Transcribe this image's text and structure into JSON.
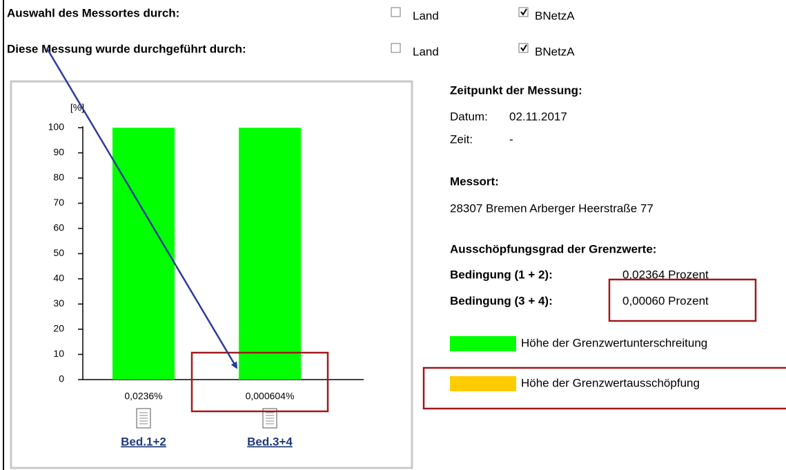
{
  "selection": {
    "label": "Auswahl des Messortes durch:",
    "options": [
      "Land",
      "BNetzA"
    ],
    "checked": [
      false,
      true
    ]
  },
  "performed_by": {
    "label": "Diese Messung wurde durchgeführt durch:",
    "options": [
      "Land",
      "BNetzA"
    ],
    "checked": [
      false,
      true
    ]
  },
  "chart_data": {
    "type": "bar",
    "stacked": true,
    "y_label": "[%]",
    "categories": [
      "Bed.1+2",
      "Bed.3+4"
    ],
    "series": [
      {
        "name": "Höhe der Grenzwertausschöpfung",
        "color": "#ffcc00",
        "values": [
          0.0236,
          0.000604
        ],
        "value_labels": [
          "0,0236%",
          "0,000604%"
        ]
      },
      {
        "name": "Höhe der Grenzwertunterschreitung",
        "color": "#00ff00",
        "values": [
          99.9764,
          99.999396
        ]
      }
    ],
    "ylim": [
      0,
      100
    ],
    "yticks": [
      0,
      10,
      20,
      30,
      40,
      50,
      60,
      70,
      80,
      90,
      100
    ]
  },
  "info": {
    "time_heading": "Zeitpunkt der Messung:",
    "date_label": "Datum:",
    "date_value": "02.11.2017",
    "time_label": "Zeit:",
    "time_value": "-",
    "location_heading": "Messort:",
    "location_value": "28307 Bremen Arberger Heerstraße 77",
    "utilization_heading": "Ausschöpfungsgrad der Grenzwerte:",
    "conditions": [
      {
        "label": "Bedingung (1 + 2):",
        "value": "0,02364 Prozent"
      },
      {
        "label": "Bedingung (3 + 4):",
        "value": "0,00060 Prozent"
      }
    ]
  }
}
